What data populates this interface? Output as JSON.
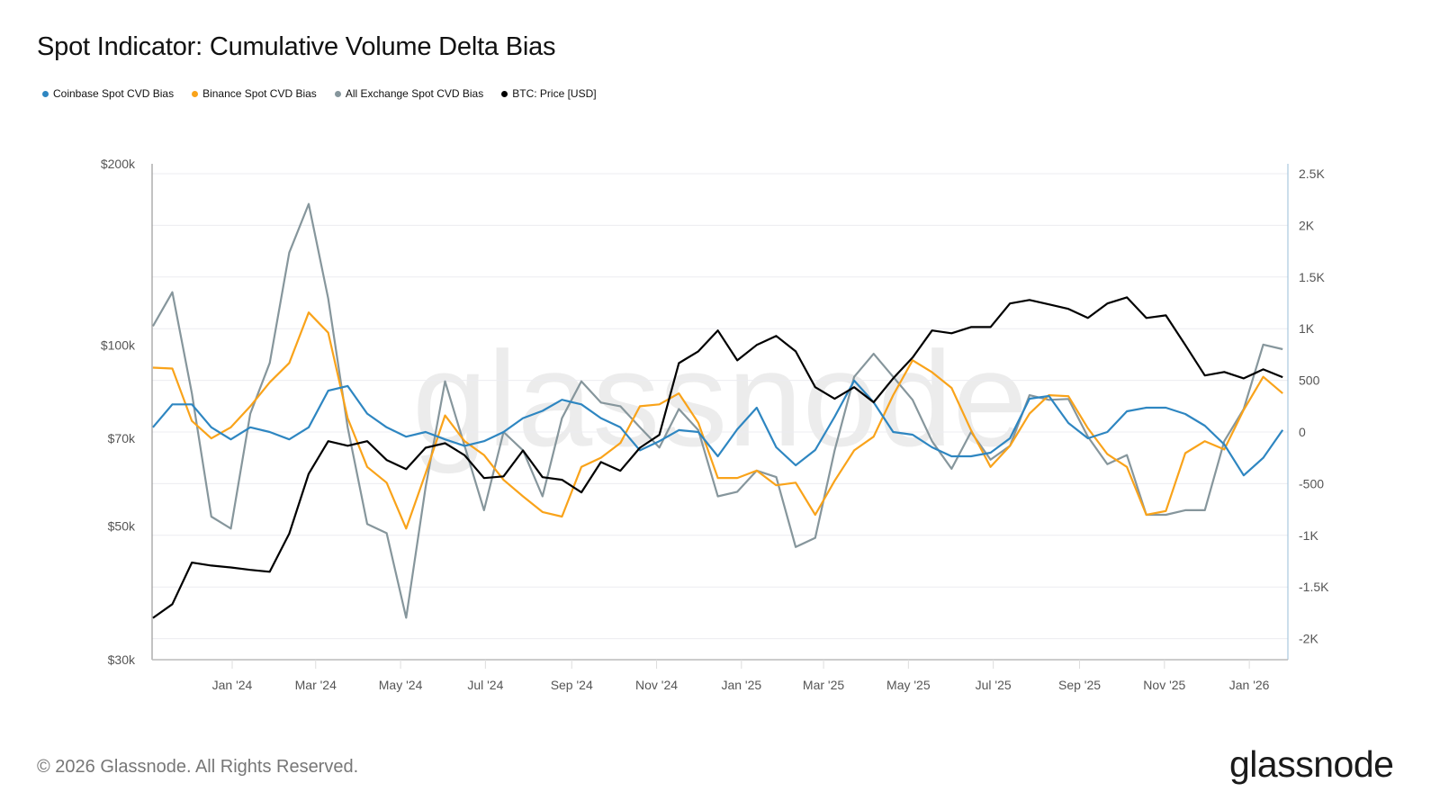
{
  "title": "Spot Indicator: Cumulative Volume Delta Bias",
  "footer": "© 2026 Glassnode. All Rights Reserved.",
  "logo": "glassnode",
  "watermark": "glassnode",
  "legend": [
    {
      "label": "Coinbase Spot CVD Bias",
      "color": "#2e86c1"
    },
    {
      "label": "Binance Spot CVD Bias",
      "color": "#f9a31a"
    },
    {
      "label": "All Exchange Spot CVD Bias",
      "color": "#86969c"
    },
    {
      "label": "BTC: Price [USD]",
      "color": "#000000"
    }
  ],
  "chart_data": {
    "type": "line",
    "title": "Spot Indicator: Cumulative Volume Delta Bias",
    "grid": true,
    "legend_position": "top-left",
    "x_ticks": [
      "Jan '24",
      "Mar '24",
      "May '24",
      "Jul '24",
      "Sep '24",
      "Nov '24",
      "Jan '25",
      "Mar '25",
      "May '25",
      "Jul '25",
      "Sep '25",
      "Nov '25",
      "Jan '26"
    ],
    "x_tick_dates": [
      "2024-01-01",
      "2024-03-01",
      "2024-05-01",
      "2024-07-01",
      "2024-09-01",
      "2024-11-01",
      "2025-01-01",
      "2025-03-01",
      "2025-05-01",
      "2025-07-01",
      "2025-09-01",
      "2025-11-01",
      "2026-01-01"
    ],
    "left_axis": {
      "scale": "log",
      "range": [
        30000,
        200000
      ],
      "ticks": [
        200000,
        100000,
        70000,
        50000,
        30000
      ],
      "tick_labels": [
        "$200k",
        "$100k",
        "$70k",
        "$50k",
        "$30k"
      ]
    },
    "right_axis": {
      "scale": "linear",
      "range": [
        -2200,
        2600
      ],
      "ticks": [
        2500,
        2000,
        1500,
        1000,
        500,
        0,
        -500,
        -1000,
        -1500,
        -2000
      ],
      "tick_labels": [
        "2.5K",
        "2K",
        "1.5K",
        "1K",
        "500",
        "0",
        "-500",
        "-1K",
        "-1.5K",
        "-2K"
      ]
    },
    "x": [
      "2023-11-05",
      "2023-11-19",
      "2023-12-03",
      "2023-12-17",
      "2023-12-31",
      "2024-01-14",
      "2024-01-28",
      "2024-02-11",
      "2024-02-25",
      "2024-03-10",
      "2024-03-24",
      "2024-04-07",
      "2024-04-21",
      "2024-05-05",
      "2024-05-19",
      "2024-06-02",
      "2024-06-16",
      "2024-06-30",
      "2024-07-14",
      "2024-07-28",
      "2024-08-11",
      "2024-08-25",
      "2024-09-08",
      "2024-09-22",
      "2024-10-06",
      "2024-10-20",
      "2024-11-03",
      "2024-11-17",
      "2024-12-01",
      "2024-12-15",
      "2024-12-29",
      "2025-01-12",
      "2025-01-26",
      "2025-02-09",
      "2025-02-23",
      "2025-03-09",
      "2025-03-23",
      "2025-04-06",
      "2025-04-20",
      "2025-05-04",
      "2025-05-18",
      "2025-06-01",
      "2025-06-15",
      "2025-06-29",
      "2025-07-13",
      "2025-07-27",
      "2025-08-10",
      "2025-08-24",
      "2025-09-07",
      "2025-09-21",
      "2025-10-05",
      "2025-10-19",
      "2025-11-02",
      "2025-11-16",
      "2025-11-30",
      "2025-12-14",
      "2025-12-28",
      "2026-01-11",
      "2026-01-25"
    ],
    "series": [
      {
        "name": "Coinbase Spot CVD Bias",
        "axis": "right",
        "color": "#2e86c1",
        "values": [
          45,
          267,
          267,
          45,
          -71,
          45,
          0,
          -71,
          45,
          400,
          445,
          178,
          45,
          -45,
          0,
          -71,
          -134,
          -89,
          0,
          134,
          205,
          312,
          267,
          134,
          45,
          -178,
          -89,
          18,
          0,
          -235,
          26,
          235,
          -148,
          -322,
          -174,
          148,
          497,
          287,
          0,
          -26,
          -148,
          -235,
          -235,
          -200,
          -61,
          322,
          348,
          87,
          -61,
          0,
          200,
          235,
          235,
          174,
          61,
          -120,
          -420,
          -250,
          20
        ]
      },
      {
        "name": "Binance Spot CVD Bias",
        "axis": "right",
        "color": "#f9a31a",
        "values": [
          623,
          614,
          107,
          -62,
          45,
          249,
          481,
          668,
          1157,
          961,
          134,
          -338,
          -490,
          -935,
          -400,
          160,
          -89,
          -223,
          -463,
          -623,
          -774,
          -819,
          -338,
          -249,
          -107,
          249,
          267,
          374,
          89,
          -445,
          -445,
          -374,
          -516,
          -490,
          -801,
          -472,
          -178,
          -45,
          356,
          694,
          578,
          427,
          18,
          -338,
          -134,
          178,
          356,
          347,
          36,
          -214,
          -338,
          -801,
          -765,
          -205,
          -89,
          -169,
          214,
          534,
          374
        ]
      },
      {
        "name": "All Exchange Spot CVD Bias",
        "axis": "right",
        "color": "#86969c",
        "values": [
          1024,
          1353,
          374,
          -819,
          -935,
          178,
          668,
          1736,
          2207,
          1291,
          45,
          -890,
          -979,
          -1798,
          -534,
          490,
          -134,
          -757,
          0,
          -178,
          -623,
          134,
          490,
          285,
          249,
          45,
          -151,
          222,
          18,
          -623,
          -578,
          -374,
          -436,
          -1113,
          -1024,
          -178,
          534,
          757,
          534,
          311,
          -89,
          -356,
          0,
          -267,
          -134,
          356,
          311,
          320,
          -45,
          -312,
          -223,
          -801,
          -801,
          -757,
          -757,
          -89,
          222,
          846,
          801
        ]
      },
      {
        "name": "BTC: Price [USD]",
        "axis": "left",
        "color": "#000000",
        "values": [
          35200,
          37100,
          43500,
          43000,
          42700,
          42300,
          42000,
          48600,
          61100,
          69200,
          68000,
          69200,
          64400,
          62200,
          67500,
          68700,
          65600,
          60100,
          60500,
          66800,
          60300,
          59700,
          56900,
          63900,
          61800,
          67500,
          70900,
          93300,
          97600,
          105700,
          94300,
          100000,
          103500,
          97600,
          85100,
          81400,
          85100,
          80300,
          88000,
          95300,
          105700,
          104600,
          107100,
          107100,
          117200,
          118800,
          116800,
          114800,
          110900,
          117200,
          120000,
          110900,
          112000,
          100000,
          89000,
          90200,
          88000,
          91100,
          88400
        ]
      }
    ]
  }
}
